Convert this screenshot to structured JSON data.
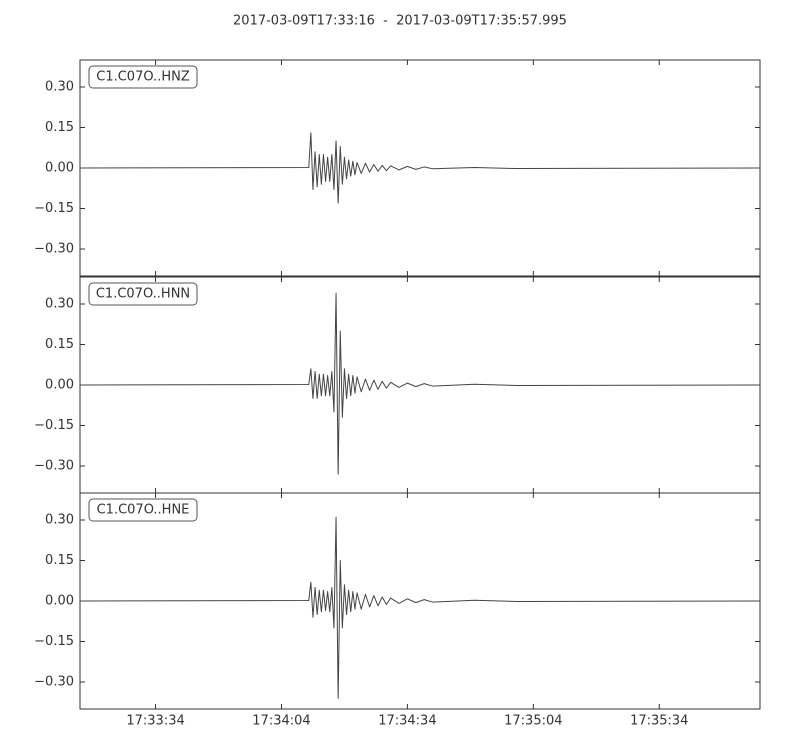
{
  "title": "2017-03-09T17:33:16  -  2017-03-09T17:35:57.995",
  "chart_data": [
    {
      "type": "line",
      "label": "C1.C07O..HNZ",
      "color": "#444444",
      "xlim": [
        "17:33:16",
        "17:35:58"
      ],
      "ylim": [
        -0.4,
        0.4
      ],
      "yticks": [
        {
          "value": 0.3,
          "label": "0.30"
        },
        {
          "value": 0.15,
          "label": "0.15"
        },
        {
          "value": 0,
          "label": "0.00"
        },
        {
          "value": -0.15,
          "label": "−0.15"
        },
        {
          "value": -0.3,
          "label": "−0.30"
        }
      ],
      "x": [
        "17:33:16",
        "17:34:10.5",
        "17:34:11",
        "17:34:11.5",
        "17:34:12",
        "17:34:12.5",
        "17:34:13",
        "17:34:13.5",
        "17:34:14",
        "17:34:14.5",
        "17:34:15",
        "17:34:15.5",
        "17:34:16",
        "17:34:16.5",
        "17:34:17",
        "17:34:17.5",
        "17:34:18",
        "17:34:18.5",
        "17:34:19",
        "17:34:19.5",
        "17:34:20",
        "17:34:20.5",
        "17:34:21",
        "17:34:21.5",
        "17:34:22",
        "17:34:23",
        "17:34:24",
        "17:34:25",
        "17:34:26",
        "17:34:27",
        "17:34:28",
        "17:34:29",
        "17:34:30",
        "17:34:32",
        "17:34:34",
        "17:34:36",
        "17:34:38",
        "17:34:40",
        "17:34:50",
        "17:35:00",
        "17:35:58"
      ],
      "values": [
        0.0,
        0.002,
        0.13,
        -0.08,
        0.06,
        -0.07,
        0.05,
        -0.06,
        0.05,
        -0.05,
        0.04,
        -0.05,
        0.05,
        -0.08,
        0.1,
        -0.13,
        0.08,
        -0.06,
        0.04,
        -0.04,
        0.03,
        -0.03,
        0.025,
        -0.025,
        0.02,
        -0.02,
        0.018,
        -0.015,
        0.013,
        -0.012,
        0.01,
        -0.01,
        0.008,
        -0.007,
        0.006,
        -0.005,
        0.004,
        -0.003,
        0.002,
        -0.002,
        0.0
      ]
    },
    {
      "type": "line",
      "label": "C1.C07O..HNN",
      "color": "#444444",
      "xlim": [
        "17:33:16",
        "17:35:58"
      ],
      "ylim": [
        -0.4,
        0.4
      ],
      "yticks": [
        {
          "value": 0.3,
          "label": "0.30"
        },
        {
          "value": 0.15,
          "label": "0.15"
        },
        {
          "value": 0,
          "label": "0.00"
        },
        {
          "value": -0.15,
          "label": "−0.15"
        },
        {
          "value": -0.3,
          "label": "−0.30"
        }
      ],
      "x": [
        "17:33:16",
        "17:34:10.5",
        "17:34:11",
        "17:34:11.5",
        "17:34:12",
        "17:34:12.5",
        "17:34:13",
        "17:34:13.5",
        "17:34:14",
        "17:34:14.5",
        "17:34:15",
        "17:34:15.5",
        "17:34:16",
        "17:34:16.5",
        "17:34:17",
        "17:34:17.5",
        "17:34:18",
        "17:34:18.5",
        "17:34:19",
        "17:34:19.5",
        "17:34:20",
        "17:34:20.5",
        "17:34:21",
        "17:34:21.5",
        "17:34:22",
        "17:34:23",
        "17:34:24",
        "17:34:25",
        "17:34:26",
        "17:34:27",
        "17:34:28",
        "17:34:29",
        "17:34:30",
        "17:34:32",
        "17:34:34",
        "17:34:36",
        "17:34:38",
        "17:34:40",
        "17:34:50",
        "17:35:00",
        "17:35:58"
      ],
      "values": [
        0.0,
        0.002,
        0.06,
        -0.05,
        0.05,
        -0.05,
        0.04,
        -0.04,
        0.04,
        -0.04,
        0.035,
        -0.04,
        0.05,
        -0.1,
        0.34,
        -0.33,
        0.2,
        -0.12,
        0.06,
        -0.05,
        0.04,
        -0.04,
        0.035,
        -0.03,
        0.03,
        -0.025,
        0.022,
        -0.02,
        0.018,
        -0.016,
        0.014,
        -0.012,
        0.01,
        -0.009,
        0.007,
        -0.006,
        0.005,
        -0.004,
        0.003,
        -0.002,
        0.0
      ]
    },
    {
      "type": "line",
      "label": "C1.C07O..HNE",
      "color": "#444444",
      "xlim": [
        "17:33:16",
        "17:35:58"
      ],
      "ylim": [
        -0.4,
        0.4
      ],
      "yticks": [
        {
          "value": 0.3,
          "label": "0.30"
        },
        {
          "value": 0.15,
          "label": "0.15"
        },
        {
          "value": 0,
          "label": "0.00"
        },
        {
          "value": -0.15,
          "label": "−0.15"
        },
        {
          "value": -0.3,
          "label": "−0.30"
        }
      ],
      "xticks": [
        "17:33:34",
        "17:34:04",
        "17:34:34",
        "17:35:04",
        "17:35:34"
      ],
      "x": [
        "17:33:16",
        "17:34:10.5",
        "17:34:11",
        "17:34:11.5",
        "17:34:12",
        "17:34:12.5",
        "17:34:13",
        "17:34:13.5",
        "17:34:14",
        "17:34:14.5",
        "17:34:15",
        "17:34:15.5",
        "17:34:16",
        "17:34:16.5",
        "17:34:17",
        "17:34:17.5",
        "17:34:18",
        "17:34:18.5",
        "17:34:19",
        "17:34:19.5",
        "17:34:20",
        "17:34:20.5",
        "17:34:21",
        "17:34:21.5",
        "17:34:22",
        "17:34:23",
        "17:34:24",
        "17:34:25",
        "17:34:26",
        "17:34:27",
        "17:34:28",
        "17:34:29",
        "17:34:30",
        "17:34:32",
        "17:34:34",
        "17:34:36",
        "17:34:38",
        "17:34:40",
        "17:34:50",
        "17:35:00",
        "17:35:58"
      ],
      "values": [
        0.0,
        0.002,
        0.07,
        -0.06,
        0.05,
        -0.05,
        0.04,
        -0.04,
        0.04,
        -0.035,
        0.035,
        -0.04,
        0.05,
        -0.1,
        0.31,
        -0.36,
        0.15,
        -0.1,
        0.06,
        -0.05,
        0.04,
        -0.04,
        0.035,
        -0.03,
        0.03,
        -0.03,
        0.025,
        -0.022,
        0.02,
        -0.018,
        0.015,
        -0.013,
        0.011,
        -0.009,
        0.008,
        -0.006,
        0.005,
        -0.004,
        0.003,
        -0.002,
        0.0
      ]
    }
  ]
}
